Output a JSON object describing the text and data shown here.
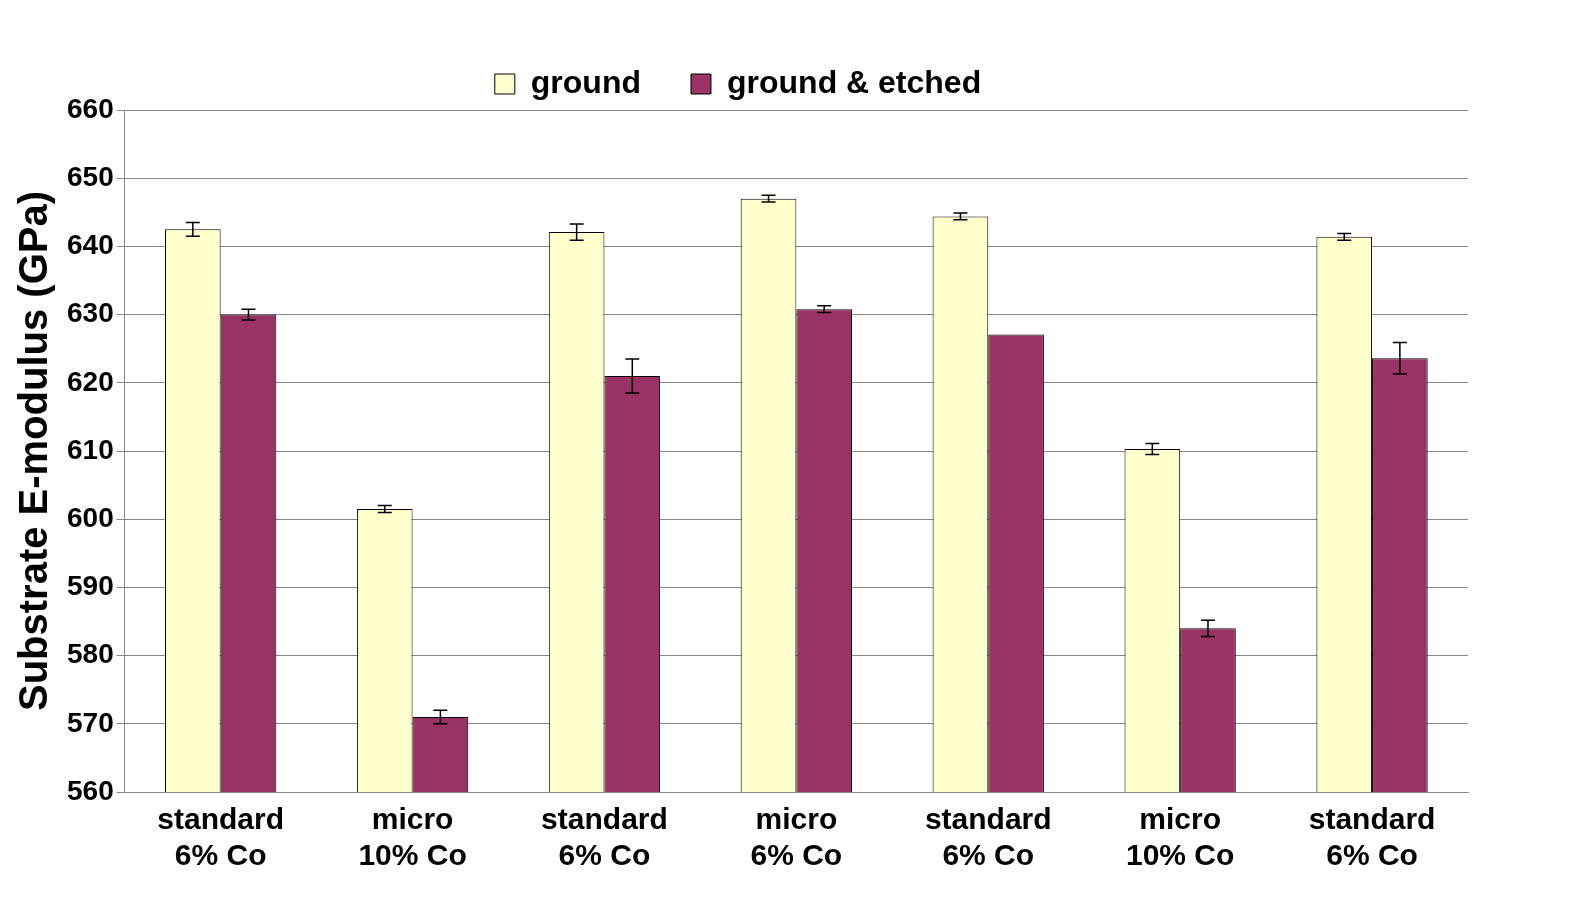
{
  "chart_data": {
    "type": "bar",
    "ylabel": "Substrate E-modulus (GPa)",
    "categories": [
      "standard\n6% Co",
      "micro\n10% Co",
      "standard\n6% Co",
      "micro\n6% Co",
      "standard\n6% Co",
      "micro\n10% Co",
      "standard\n6% Co"
    ],
    "series": [
      {
        "name": "ground",
        "color": "#ffffcc",
        "values": [
          642.5,
          601.5,
          642.1,
          647,
          644.4,
          610.3,
          641.4
        ],
        "errors": [
          1,
          0.5,
          1.2,
          0.5,
          0.5,
          0.8,
          0.5
        ]
      },
      {
        "name": "ground & etched",
        "color": "#993366",
        "values": [
          630,
          571,
          621,
          630.8,
          627.1,
          584,
          623.6
        ],
        "errors": [
          0.8,
          1,
          2.5,
          0.5,
          null,
          1.2,
          2.3
        ]
      }
    ],
    "ylim": [
      560,
      660
    ],
    "yticks": [
      560,
      570,
      580,
      590,
      600,
      610,
      620,
      630,
      640,
      650,
      660
    ],
    "grid": "y",
    "legend": "top"
  }
}
